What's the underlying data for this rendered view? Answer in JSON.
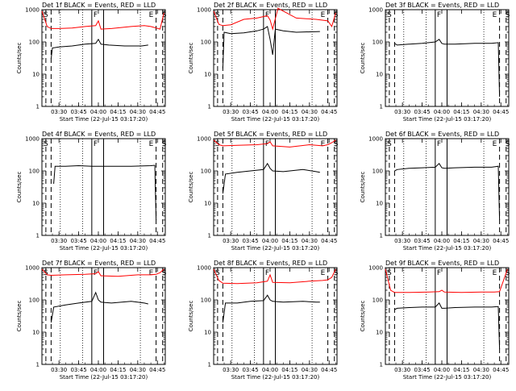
{
  "panel_titles": [
    "Det 1f BLACK = Events, RED = LLD",
    "Det 2f BLACK = Events, RED = LLD",
    "Det 3f BLACK = Events, RED = LLD",
    "Det 4f BLACK = Events, RED = LLD",
    "Det 5f BLACK = Events, RED = LLD",
    "Det 6f BLACK = Events, RED = LLD",
    "Det 7f BLACK = Events, RED = LLD",
    "Det 8f BLACK = Events, RED = LLD",
    "Det 9f BLACK = Events, RED = LLD"
  ],
  "common": {
    "xlabel": "Start Time (22-Jul-15 03:17:20)",
    "ylabel": "Counts/sec",
    "x_tick_labels": [
      "03:30",
      "03:45",
      "04:00",
      "04:15",
      "04:30",
      "04:45"
    ],
    "y_tick_labels": [
      "1",
      "10",
      "100",
      "1000"
    ],
    "markers": {
      "S": "S",
      "F": "F",
      "E": "E"
    }
  },
  "colors": {
    "events": "#000000",
    "lld": "#ff0000"
  },
  "chart_data": [
    {
      "type": "line",
      "title": "Det 1f BLACK = Events, RED = LLD",
      "xlabel": "Start Time (22-Jul-15 03:17:20)",
      "ylabel": "Counts/sec",
      "ylog": true,
      "xlim": [
        "03:17",
        "04:51"
      ],
      "ylim": [
        1,
        1000
      ],
      "series": [
        {
          "name": "Events",
          "x": [
            "03:24",
            "03:25",
            "03:30",
            "03:40",
            "03:50",
            "03:58",
            "04:00",
            "04:02",
            "04:08",
            "04:20",
            "04:33",
            "04:38"
          ],
          "y": [
            30,
            65,
            70,
            75,
            85,
            90,
            120,
            85,
            80,
            75,
            75,
            80
          ]
        },
        {
          "name": "LLD",
          "x": [
            "03:17",
            "03:21",
            "03:24",
            "03:30",
            "03:40",
            "03:50",
            "03:58",
            "04:00",
            "04:02",
            "04:10",
            "04:25",
            "04:35",
            "04:40",
            "04:47",
            "04:50"
          ],
          "y": [
            900,
            300,
            260,
            260,
            270,
            300,
            320,
            450,
            250,
            260,
            300,
            320,
            300,
            250,
            800
          ]
        }
      ],
      "vlines": {
        "dashed": [
          "03:20",
          "03:24",
          "04:44",
          "04:49"
        ],
        "dotted": [
          "03:31",
          "03:48",
          "04:32"
        ],
        "solid": [
          "03:55",
          "04:04"
        ]
      }
    },
    {
      "type": "line",
      "title": "Det 2f BLACK = Events, RED = LLD",
      "xlabel": "Start Time (22-Jul-15 03:17:20)",
      "ylabel": "Counts/sec",
      "ylog": true,
      "xlim": [
        "03:17",
        "04:51"
      ],
      "ylim": [
        1,
        1000
      ],
      "series": [
        {
          "name": "Events",
          "x": [
            "03:24",
            "03:25",
            "03:30",
            "03:40",
            "03:50",
            "03:55",
            "03:58",
            "04:00",
            "04:02",
            "04:04",
            "04:10",
            "04:20",
            "04:38"
          ],
          "y": [
            15,
            200,
            180,
            190,
            220,
            250,
            300,
            120,
            40,
            250,
            220,
            200,
            210
          ]
        },
        {
          "name": "LLD",
          "x": [
            "03:17",
            "03:21",
            "03:24",
            "03:30",
            "03:40",
            "03:50",
            "03:58",
            "04:00",
            "04:02",
            "04:06",
            "04:20",
            "04:35",
            "04:44",
            "04:47",
            "04:50"
          ],
          "y": [
            900,
            350,
            320,
            340,
            500,
            550,
            650,
            480,
            250,
            1100,
            550,
            500,
            450,
            300,
            800
          ]
        }
      ],
      "vlines": {
        "dashed": [
          "03:20",
          "03:24",
          "04:44",
          "04:49"
        ],
        "dotted": [
          "03:31",
          "03:48",
          "04:32"
        ],
        "solid": [
          "03:55",
          "04:04"
        ]
      }
    },
    {
      "type": "line",
      "title": "Det 3f BLACK = Events, RED = LLD",
      "xlabel": "Start Time (22-Jul-15 03:17:20)",
      "ylabel": "Counts/sec",
      "ylog": true,
      "xlim": [
        "03:17",
        "04:51"
      ],
      "ylim": [
        1,
        1000
      ],
      "series": [
        {
          "name": "Events",
          "x": [
            "03:24",
            "03:26",
            "03:35",
            "03:45",
            "03:55",
            "03:58",
            "04:00",
            "04:02",
            "04:10",
            "04:25",
            "04:38",
            "04:43",
            "04:44"
          ],
          "y": [
            90,
            80,
            85,
            90,
            100,
            120,
            90,
            85,
            85,
            90,
            90,
            95,
            2
          ]
        }
      ],
      "vlines": {
        "dashed": [
          "03:20",
          "03:24",
          "04:44",
          "04:49"
        ],
        "dotted": [
          "03:31",
          "03:48",
          "04:32"
        ],
        "solid": [
          "03:55",
          "04:04"
        ]
      }
    },
    {
      "type": "line",
      "title": "Det 4f BLACK = Events, RED = LLD",
      "xlabel": "Start Time (22-Jul-15 03:17:20)",
      "ylabel": "Counts/sec",
      "ylog": true,
      "xlim": [
        "03:17",
        "04:51"
      ],
      "ylim": [
        1,
        1000
      ],
      "series": [
        {
          "name": "Events",
          "x": [
            "03:26",
            "03:27",
            "03:35",
            "03:45",
            "03:55",
            "04:05",
            "04:15",
            "04:25",
            "04:40",
            "04:43",
            "04:44"
          ],
          "y": [
            40,
            140,
            140,
            145,
            140,
            140,
            140,
            140,
            145,
            150,
            3
          ]
        }
      ],
      "vlines": {
        "dashed": [
          "03:20",
          "03:24",
          "04:44",
          "04:49"
        ],
        "dotted": [
          "03:31",
          "03:48",
          "04:32"
        ],
        "solid": [
          "03:55",
          "04:04"
        ]
      }
    },
    {
      "type": "line",
      "title": "Det 5f BLACK = Events, RED = LLD",
      "xlabel": "Start Time (22-Jul-15 03:17:20)",
      "ylabel": "Counts/sec",
      "ylog": true,
      "xlim": [
        "03:17",
        "04:51"
      ],
      "ylim": [
        1,
        1000
      ],
      "series": [
        {
          "name": "Events",
          "x": [
            "03:24",
            "03:26",
            "03:35",
            "03:45",
            "03:55",
            "03:58",
            "04:00",
            "04:02",
            "04:10",
            "04:25",
            "04:35",
            "04:38"
          ],
          "y": [
            20,
            80,
            90,
            100,
            110,
            170,
            120,
            100,
            95,
            110,
            95,
            90
          ]
        },
        {
          "name": "LLD",
          "x": [
            "03:17",
            "03:21",
            "03:24",
            "03:35",
            "03:50",
            "03:58",
            "04:00",
            "04:02",
            "04:15",
            "04:30",
            "04:40",
            "04:44",
            "04:47",
            "04:50"
          ],
          "y": [
            900,
            650,
            600,
            620,
            650,
            700,
            800,
            600,
            550,
            650,
            600,
            650,
            750,
            900
          ]
        }
      ],
      "vlines": {
        "dashed": [
          "03:20",
          "03:24",
          "04:44",
          "04:49"
        ],
        "dotted": [
          "03:31",
          "03:48",
          "04:32"
        ],
        "solid": [
          "03:55",
          "04:04"
        ]
      }
    },
    {
      "type": "line",
      "title": "Det 6f BLACK = Events, RED = LLD",
      "xlabel": "Start Time (22-Jul-15 03:17:20)",
      "ylabel": "Counts/sec",
      "ylog": true,
      "xlim": [
        "03:17",
        "04:51"
      ],
      "ylim": [
        1,
        1000
      ],
      "series": [
        {
          "name": "Events",
          "x": [
            "03:24",
            "03:26",
            "03:35",
            "03:45",
            "03:55",
            "03:58",
            "04:00",
            "04:02",
            "04:10",
            "04:25",
            "04:38",
            "04:43",
            "04:44"
          ],
          "y": [
            100,
            110,
            120,
            125,
            130,
            170,
            125,
            120,
            125,
            130,
            130,
            140,
            3
          ]
        }
      ],
      "vlines": {
        "dashed": [
          "03:20",
          "03:24",
          "04:44",
          "04:49"
        ],
        "dotted": [
          "03:31",
          "03:48",
          "04:32"
        ],
        "solid": [
          "03:55",
          "04:04"
        ]
      }
    },
    {
      "type": "line",
      "title": "Det 7f BLACK = Events, RED = LLD",
      "xlabel": "Start Time (22-Jul-15 03:17:20)",
      "ylabel": "Counts/sec",
      "ylog": true,
      "xlim": [
        "03:17",
        "04:51"
      ],
      "ylim": [
        1,
        1000
      ],
      "series": [
        {
          "name": "Events",
          "x": [
            "03:24",
            "03:26",
            "03:35",
            "03:45",
            "03:55",
            "03:58",
            "04:00",
            "04:02",
            "04:10",
            "04:25",
            "04:35",
            "04:38"
          ],
          "y": [
            20,
            60,
            70,
            80,
            90,
            170,
            100,
            85,
            80,
            90,
            80,
            75
          ]
        },
        {
          "name": "LLD",
          "x": [
            "03:17",
            "03:21",
            "03:24",
            "03:35",
            "03:50",
            "03:58",
            "04:00",
            "04:02",
            "04:15",
            "04:30",
            "04:40",
            "04:44",
            "04:47",
            "04:50"
          ],
          "y": [
            900,
            600,
            580,
            600,
            620,
            650,
            750,
            560,
            540,
            600,
            600,
            620,
            700,
            900
          ]
        }
      ],
      "vlines": {
        "dashed": [
          "03:20",
          "03:24",
          "04:44",
          "04:49"
        ],
        "dotted": [
          "03:31",
          "03:48",
          "04:32"
        ],
        "solid": [
          "03:55",
          "04:04"
        ]
      }
    },
    {
      "type": "line",
      "title": "Det 8f BLACK = Events, RED = LLD",
      "xlabel": "Start Time (22-Jul-15 03:17:20)",
      "ylabel": "Counts/sec",
      "ylog": true,
      "xlim": [
        "03:17",
        "04:51"
      ],
      "ylim": [
        1,
        1000
      ],
      "series": [
        {
          "name": "Events",
          "x": [
            "03:24",
            "03:26",
            "03:35",
            "03:45",
            "03:55",
            "03:58",
            "04:00",
            "04:02",
            "04:10",
            "04:25",
            "04:35",
            "04:38"
          ],
          "y": [
            20,
            80,
            80,
            90,
            95,
            140,
            100,
            90,
            85,
            90,
            85,
            85
          ]
        },
        {
          "name": "LLD",
          "x": [
            "03:17",
            "03:21",
            "03:24",
            "03:35",
            "03:50",
            "03:58",
            "04:00",
            "04:02",
            "04:15",
            "04:30",
            "04:40",
            "04:44",
            "04:47",
            "04:50"
          ],
          "y": [
            900,
            400,
            330,
            320,
            340,
            380,
            600,
            350,
            340,
            380,
            400,
            420,
            500,
            900
          ]
        }
      ],
      "vlines": {
        "dashed": [
          "03:20",
          "03:24",
          "04:44",
          "04:49"
        ],
        "dotted": [
          "03:31",
          "03:48",
          "04:32"
        ],
        "solid": [
          "03:55",
          "04:04"
        ]
      }
    },
    {
      "type": "line",
      "title": "Det 9f BLACK = Events, RED = LLD",
      "xlabel": "Start Time (22-Jul-15 03:17:20)",
      "ylabel": "Counts/sec",
      "ylog": true,
      "xlim": [
        "03:17",
        "04:51"
      ],
      "ylim": [
        1,
        1000
      ],
      "series": [
        {
          "name": "Events",
          "x": [
            "03:24",
            "03:26",
            "03:35",
            "03:45",
            "03:55",
            "03:58",
            "04:00",
            "04:02",
            "04:10",
            "04:25",
            "04:38",
            "04:43",
            "04:44"
          ],
          "y": [
            50,
            55,
            58,
            60,
            60,
            80,
            55,
            55,
            58,
            60,
            60,
            62,
            3
          ]
        },
        {
          "name": "LLD",
          "x": [
            "03:17",
            "03:21",
            "03:24",
            "03:35",
            "03:50",
            "03:58",
            "04:00",
            "04:02",
            "04:15",
            "04:30",
            "04:40",
            "04:44",
            "04:47",
            "04:50"
          ],
          "y": [
            900,
            200,
            170,
            170,
            175,
            180,
            200,
            175,
            170,
            175,
            175,
            180,
            400,
            900
          ]
        }
      ],
      "vlines": {
        "dashed": [
          "03:20",
          "03:24",
          "04:44",
          "04:49"
        ],
        "dotted": [
          "03:31",
          "03:48",
          "04:32"
        ],
        "solid": [
          "03:55",
          "04:04"
        ]
      }
    }
  ]
}
